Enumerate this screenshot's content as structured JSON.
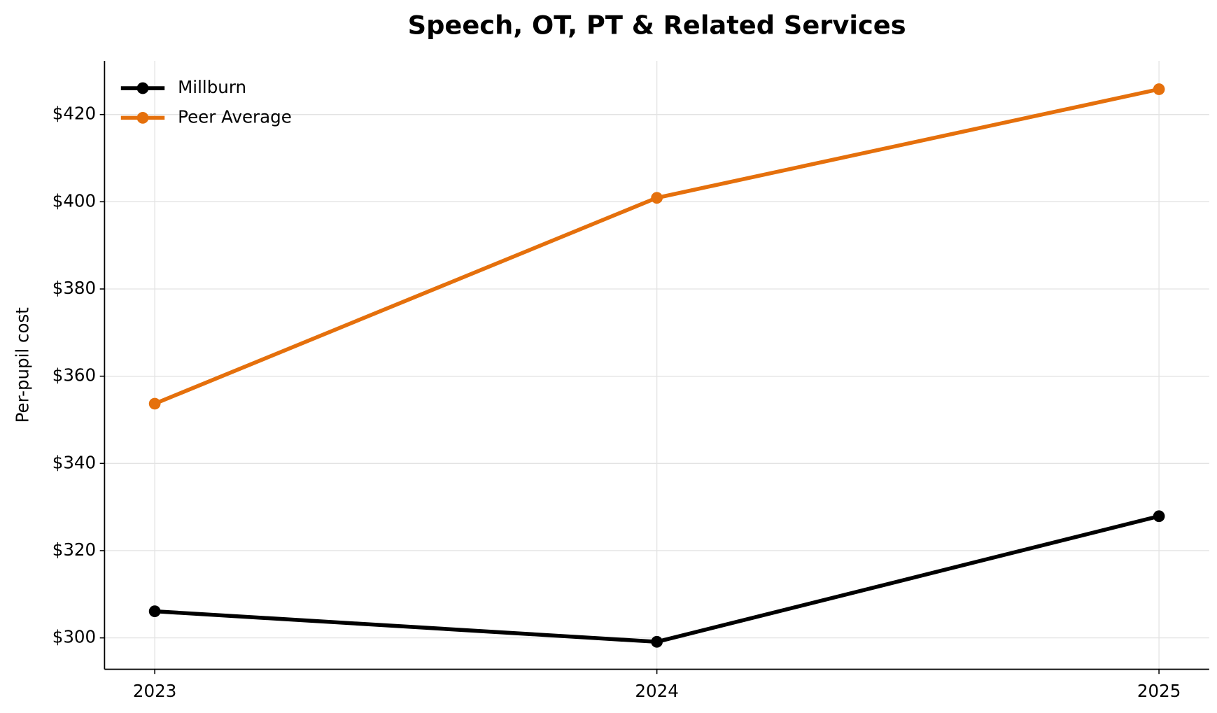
{
  "chart_data": {
    "type": "line",
    "title": "Speech, OT, PT & Related Services",
    "y_label": "Per-pupil cost",
    "x": [
      2023,
      2024,
      2025
    ],
    "series": [
      {
        "name": "Millburn",
        "color": "#000000",
        "values": [
          306.1,
          299.1,
          327.9
        ]
      },
      {
        "name": "Peer Average",
        "color": "#e5700c",
        "values": [
          353.7,
          400.9,
          425.8
        ]
      }
    ],
    "xlim": [
      2022.9,
      2025.1
    ],
    "xticks": [
      2023,
      2024,
      2025
    ],
    "ylim": [
      292.8,
      432.3
    ],
    "yticks": [
      {
        "value": 300,
        "label": "$300"
      },
      {
        "value": 320,
        "label": "$320"
      },
      {
        "value": 340,
        "label": "$340"
      },
      {
        "value": 360,
        "label": "$360"
      },
      {
        "value": 380,
        "label": "$380"
      },
      {
        "value": 400,
        "label": "$400"
      },
      {
        "value": 420,
        "label": "$420"
      }
    ],
    "grid": true,
    "legend": "upper left"
  }
}
